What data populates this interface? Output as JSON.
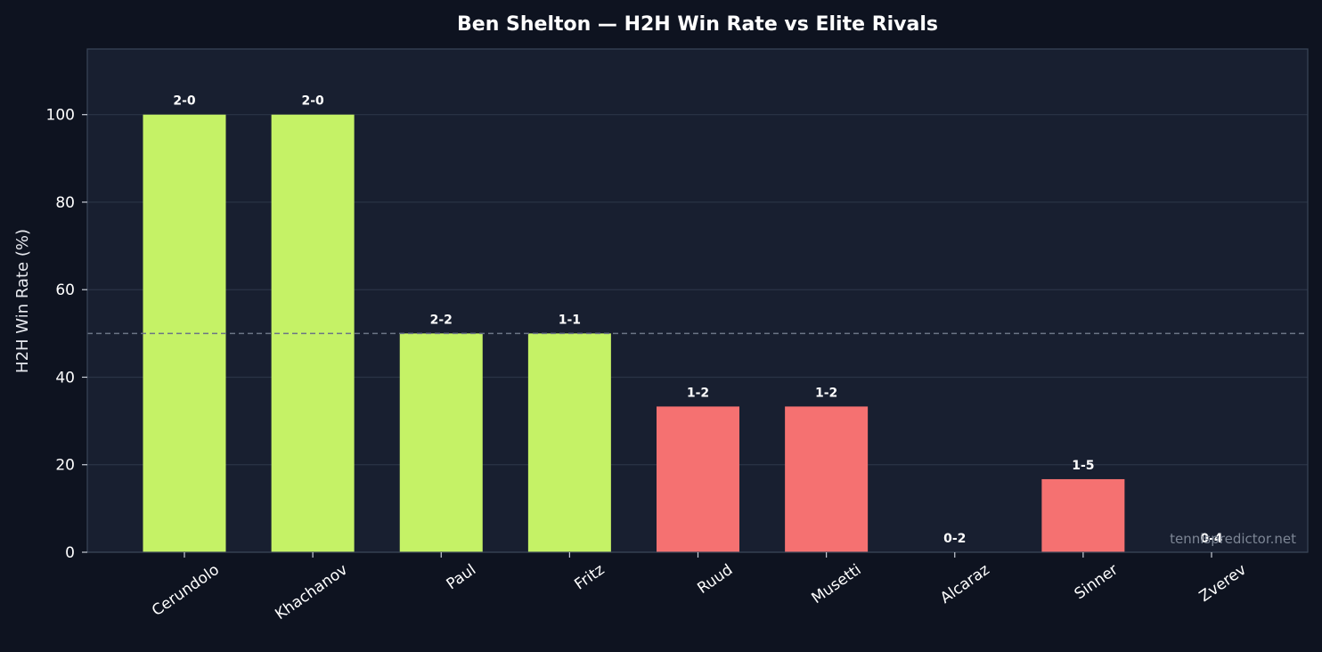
{
  "chart_data": {
    "type": "bar",
    "title": "Ben Shelton — H2H Win Rate vs Elite Rivals",
    "xlabel": "",
    "ylabel": "H2H Win Rate (%)",
    "ylim": [
      0,
      115
    ],
    "yticks": [
      0,
      20,
      40,
      60,
      80,
      100
    ],
    "grid": true,
    "reference_line": 50,
    "categories": [
      "Cerundolo",
      "Khachanov",
      "Paul",
      "Fritz",
      "Ruud",
      "Musetti",
      "Alcaraz",
      "Sinner",
      "Zverev"
    ],
    "values": [
      100,
      100,
      50,
      50,
      33.3,
      33.3,
      0,
      16.7,
      0
    ],
    "bar_labels": [
      "2-0",
      "2-0",
      "2-2",
      "1-1",
      "1-2",
      "1-2",
      "0-2",
      "1-5",
      "0-4"
    ],
    "watermark": "tennispredictor.net"
  },
  "colors": {
    "page_bg": "#0e1320",
    "plot_bg": "#181f30",
    "win_bar": "#c5f266",
    "loss_bar": "#f57171",
    "grid": "#2a3446",
    "reference_line": "#6b7585",
    "axis": "#3a4558"
  }
}
